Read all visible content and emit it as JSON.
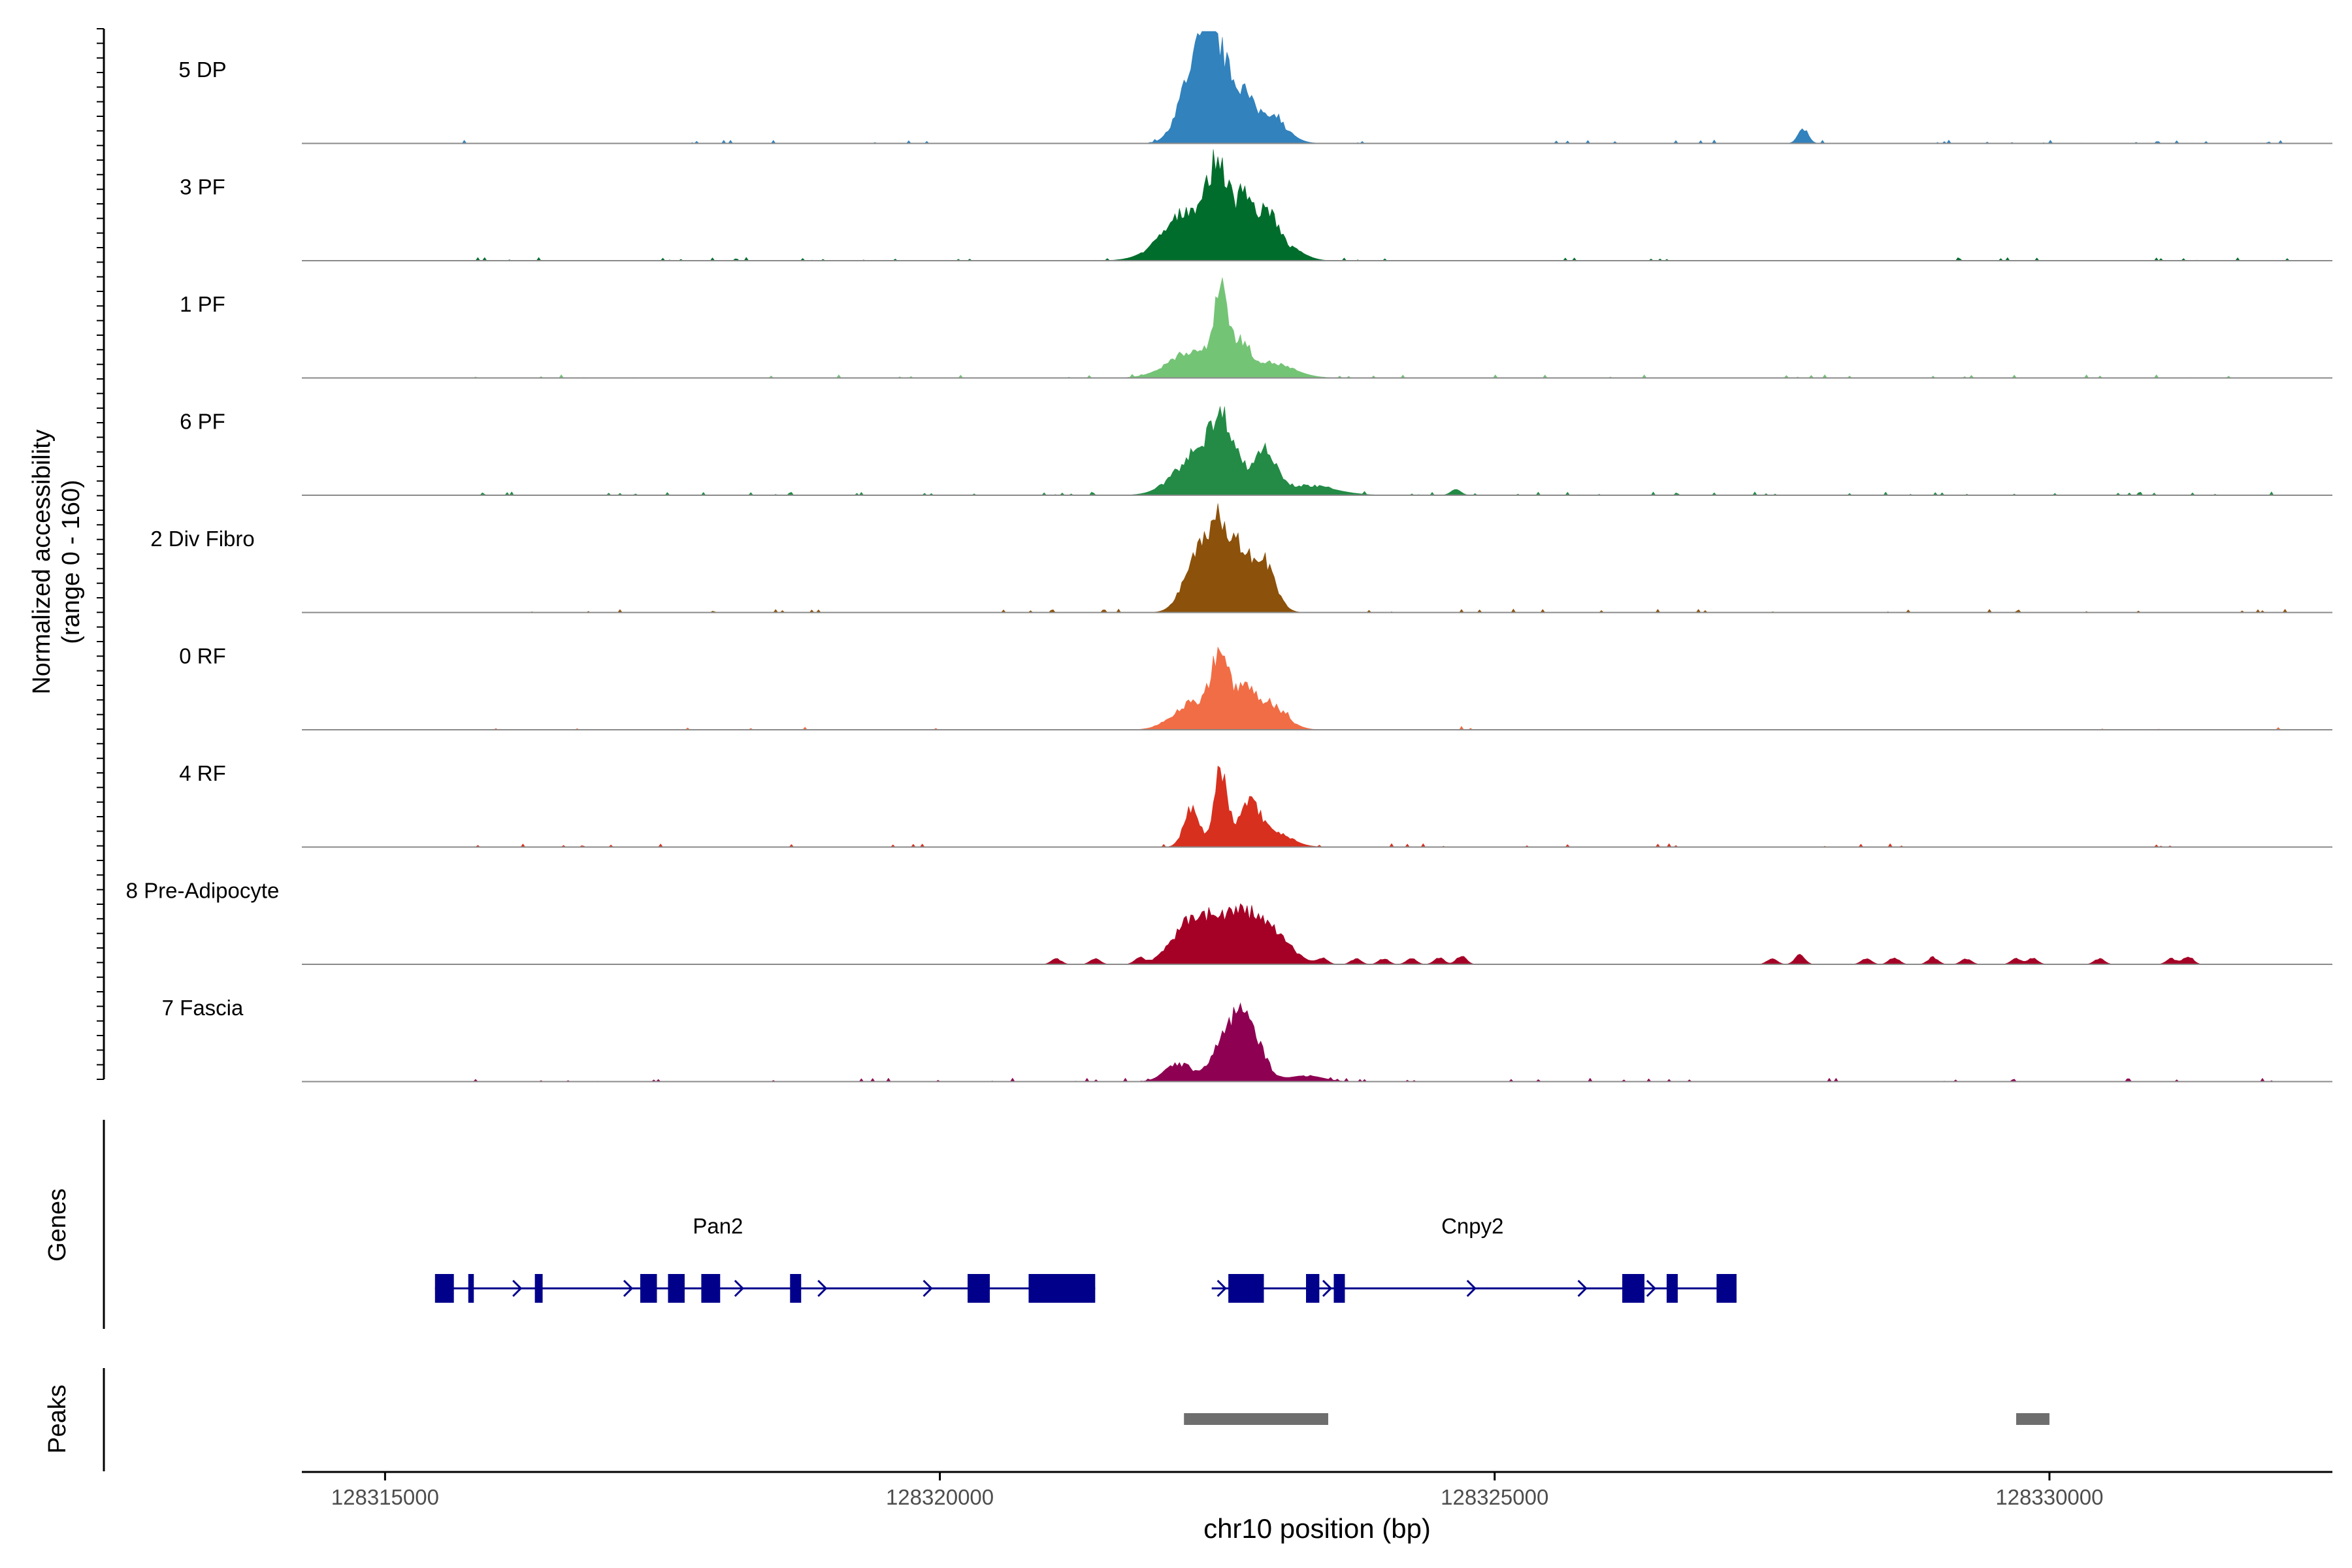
{
  "chart_data": {
    "type": "area",
    "title": "",
    "ylabel_line1": "Normalized accessibility",
    "ylabel_line2": "(range 0 - 160)",
    "xlabel": "chr10 position (bp)",
    "xlim": [
      128314250,
      128332550
    ],
    "ylim": [
      0,
      160
    ],
    "x_ticks": [
      128315000,
      128320000,
      128325000,
      128330000
    ],
    "x_tick_labels": [
      "128315000",
      "128320000",
      "128325000",
      "128330000"
    ],
    "tracks": [
      {
        "name": "5 DP",
        "color": "#3182bd",
        "peak": 160,
        "scale": 1.0,
        "bg": 0.05,
        "shape": [
          [
            128322250,
            15,
            120
          ],
          [
            128322470,
            40,
            160
          ],
          [
            128322750,
            8,
            58
          ],
          [
            128322950,
            12,
            150
          ]
        ],
        "blips": [
          [
            128327780,
            6
          ]
        ]
      },
      {
        "name": "3 PF",
        "color": "#006d2c",
        "peak": 148,
        "scale": 1.0,
        "bg": 0.06,
        "shape": [
          [
            128322280,
            45,
            240
          ],
          [
            128322520,
            60,
            90
          ],
          [
            128322750,
            50,
            70
          ],
          [
            128322950,
            40,
            90
          ],
          [
            128323150,
            10,
            130
          ]
        ],
        "blips": []
      },
      {
        "name": "1 PF",
        "color": "#74c476",
        "peak": 143,
        "scale": 1.0,
        "bg": 0.06,
        "shape": [
          [
            128322300,
            28,
            220
          ],
          [
            128322530,
            78,
            55
          ],
          [
            128322700,
            28,
            90
          ],
          [
            128322980,
            15,
            200
          ]
        ],
        "blips": []
      },
      {
        "name": "6 PF",
        "color": "#238b45",
        "peak": 117,
        "scale": 1.0,
        "bg": 0.08,
        "shape": [
          [
            128322320,
            40,
            200
          ],
          [
            128322560,
            62,
            120
          ],
          [
            128322930,
            45,
            100
          ],
          [
            128323300,
            10,
            250
          ]
        ],
        "blips": [
          [
            128324650,
            6
          ]
        ]
      },
      {
        "name": "2 Div Fibro",
        "color": "#8c510a",
        "peak": 146,
        "scale": 1.0,
        "bg": 0.05,
        "shape": [
          [
            128322350,
            60,
            130
          ],
          [
            128322530,
            60,
            80
          ],
          [
            128322700,
            45,
            70
          ],
          [
            128322900,
            48,
            110
          ]
        ],
        "blips": []
      },
      {
        "name": "0 RF",
        "color": "#f16d45",
        "peak": 118,
        "scale": 1.0,
        "bg": 0.04,
        "shape": [
          [
            128322280,
            25,
            170
          ],
          [
            128322530,
            65,
            80
          ],
          [
            128322750,
            28,
            80
          ],
          [
            128322950,
            25,
            150
          ]
        ],
        "blips": []
      },
      {
        "name": "4 RF",
        "color": "#d7301f",
        "peak": 112,
        "scale": 1.0,
        "bg": 0.04,
        "shape": [
          [
            128322270,
            35,
            70
          ],
          [
            128322530,
            68,
            60
          ],
          [
            128322780,
            35,
            90
          ],
          [
            128322980,
            15,
            160
          ]
        ],
        "blips": []
      },
      {
        "name": "8 Pre-Adipocyte",
        "color": "#a50026",
        "peak": 79,
        "scale": 1.0,
        "bg": 0.0,
        "shape": [
          [
            128322300,
            72,
            180
          ],
          [
            128322700,
            70,
            180
          ],
          [
            128323000,
            40,
            170
          ]
        ],
        "blips": [
          [
            128321050,
            9
          ],
          [
            128321400,
            9
          ],
          [
            128321800,
            9
          ],
          [
            128323450,
            9
          ],
          [
            128323750,
            9
          ],
          [
            128324000,
            9
          ],
          [
            128324250,
            9
          ],
          [
            128324500,
            10
          ],
          [
            128324700,
            13
          ],
          [
            128327500,
            9
          ],
          [
            128327750,
            14
          ],
          [
            128328350,
            9
          ],
          [
            128328600,
            11
          ],
          [
            128328950,
            11
          ],
          [
            128329250,
            9
          ],
          [
            128329700,
            9
          ],
          [
            128329850,
            9
          ],
          [
            128330450,
            9
          ],
          [
            128331100,
            9
          ],
          [
            128331250,
            12
          ]
        ]
      },
      {
        "name": "7 Fascia",
        "color": "#8e0152",
        "peak": 102,
        "scale": 1.0,
        "bg": 0.06,
        "shape": [
          [
            128322150,
            35,
            120
          ],
          [
            128322620,
            100,
            140
          ],
          [
            128322800,
            80,
            120
          ],
          [
            128323300,
            12,
            150
          ]
        ],
        "blips": []
      }
    ],
    "genes_label": "Genes",
    "peaks_label": "Peaks",
    "genes": [
      {
        "name": "Pan2",
        "start": 128315450,
        "end": 128321400,
        "label_pos": 128318000,
        "exons": [
          [
            128315450,
            128315620
          ],
          [
            128315750,
            128315800
          ],
          [
            128316350,
            128316420
          ],
          [
            128317300,
            128317450
          ],
          [
            128317550,
            128317700
          ],
          [
            128317850,
            128318020
          ],
          [
            128318650,
            128318750
          ],
          [
            128320250,
            128320450
          ],
          [
            128320800,
            128321400
          ]
        ],
        "arrows": [
          128315520,
          128316200,
          128317200,
          128318200,
          128318950,
          128319900
        ]
      },
      {
        "name": "Cnpy2",
        "start": 128322450,
        "end": 128327180,
        "label_pos": 128324800,
        "exons": [
          [
            128322600,
            128322920
          ],
          [
            128323300,
            128323420
          ],
          [
            128323550,
            128323650
          ],
          [
            128326150,
            128326350
          ],
          [
            128326550,
            128326650
          ],
          [
            128327000,
            128327180
          ]
        ],
        "arrows": [
          128322550,
          128323500,
          128324800,
          128325800,
          128326420
        ]
      }
    ],
    "peaks": [
      [
        128322200,
        128323500
      ],
      [
        128329700,
        128330000
      ]
    ]
  }
}
